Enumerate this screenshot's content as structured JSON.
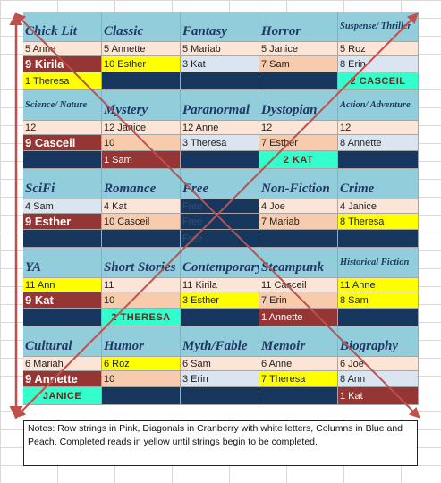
{
  "colors": {
    "header": "#92cddc",
    "peach": "#fce4d6",
    "blue": "#dae5f1",
    "yellow": "#ffff00",
    "orange": "#f8cbad",
    "cranberry": "#963634",
    "navy": "#17375e",
    "teal": "#33ffcc",
    "line": "#c0504d"
  },
  "sections": [
    {
      "headers": [
        "Chick Lit",
        "Classic",
        "Fantasy",
        "Horror",
        "Suspense/ Thriller"
      ],
      "header_small": [
        false,
        false,
        false,
        false,
        true
      ],
      "rows": [
        [
          {
            "t": "5 Anne",
            "c": "peach"
          },
          {
            "t": "5 Annette",
            "c": "peach"
          },
          {
            "t": "5 Mariab",
            "c": "peach"
          },
          {
            "t": "5 Janice",
            "c": "peach"
          },
          {
            "t": "5 Roz",
            "c": "peach"
          }
        ],
        [
          {
            "t": "9 Kirila",
            "c": "cranberry"
          },
          {
            "t": "10 Esther",
            "c": "yellow"
          },
          {
            "t": "3 Kat",
            "c": "blue"
          },
          {
            "t": "7 Sam",
            "c": "orange"
          },
          {
            "t": "8 Erin",
            "c": "blue"
          }
        ],
        [
          {
            "t": "1 Theresa",
            "c": "yellow"
          },
          {
            "t": "",
            "c": "navy"
          },
          {
            "t": "",
            "c": "navy"
          },
          {
            "t": "",
            "c": "navy"
          },
          {
            "t": "2 CASCEIL",
            "c": "teal"
          }
        ]
      ]
    },
    {
      "headers": [
        "Science/ Nature",
        "Mystery",
        "Paranormal",
        "Dystopian",
        "Action/ Adventure"
      ],
      "header_small": [
        true,
        false,
        false,
        false,
        true
      ],
      "rows": [
        [
          {
            "t": "12",
            "c": "peach"
          },
          {
            "t": "12 Janice",
            "c": "peach"
          },
          {
            "t": "12 Anne",
            "c": "peach"
          },
          {
            "t": "12",
            "c": "peach"
          },
          {
            "t": "12",
            "c": "peach"
          }
        ],
        [
          {
            "t": "9 Casceil",
            "c": "cranberry"
          },
          {
            "t": "10",
            "c": "orange"
          },
          {
            "t": "3 Theresa",
            "c": "blue"
          },
          {
            "t": "7 Esther",
            "c": "orange"
          },
          {
            "t": "8 Annette",
            "c": "blue"
          }
        ],
        [
          {
            "t": "",
            "c": "navy"
          },
          {
            "t": "1 Sam",
            "c": "cranberry"
          },
          {
            "t": "",
            "c": "navy"
          },
          {
            "t": "2 KAT",
            "c": "teal"
          },
          {
            "t": "",
            "c": "navy"
          }
        ]
      ]
    },
    {
      "headers": [
        "SciFi",
        "Romance",
        "Free",
        "Non-Fiction",
        "Crime"
      ],
      "header_small": [
        false,
        false,
        false,
        false,
        false
      ],
      "rows": [
        [
          {
            "t": "4 Sam",
            "c": "blue"
          },
          {
            "t": "4 Kat",
            "c": "peach"
          },
          {
            "t": "Free",
            "c": "navy"
          },
          {
            "t": "4 Joe",
            "c": "peach"
          },
          {
            "t": "4 Janice",
            "c": "peach"
          }
        ],
        [
          {
            "t": "9 Esther",
            "c": "cranberry"
          },
          {
            "t": "10 Casceil",
            "c": "orange"
          },
          {
            "t": "Free",
            "c": "navy"
          },
          {
            "t": "7 Mariab",
            "c": "orange"
          },
          {
            "t": "8 Theresa",
            "c": "yellow"
          }
        ],
        [
          {
            "t": "",
            "c": "navy"
          },
          {
            "t": "",
            "c": "navy"
          },
          {
            "t": "Free",
            "c": "navy"
          },
          {
            "t": "",
            "c": "navy"
          },
          {
            "t": "",
            "c": "navy"
          }
        ]
      ]
    },
    {
      "headers": [
        "YA",
        "Short Stories",
        "Contemporary",
        "Steampunk",
        "Historical Fiction"
      ],
      "header_small": [
        false,
        false,
        false,
        false,
        true
      ],
      "rows": [
        [
          {
            "t": "11 Ann",
            "c": "yellow"
          },
          {
            "t": "11",
            "c": "peach"
          },
          {
            "t": "11 Kirila",
            "c": "peach"
          },
          {
            "t": "11 Casceil",
            "c": "peach"
          },
          {
            "t": "11 Anne",
            "c": "yellow"
          }
        ],
        [
          {
            "t": "9 Kat",
            "c": "cranberry"
          },
          {
            "t": "10",
            "c": "orange"
          },
          {
            "t": "3 Esther",
            "c": "yellow"
          },
          {
            "t": "7 Erin",
            "c": "orange"
          },
          {
            "t": "8 Sam",
            "c": "yellow"
          }
        ],
        [
          {
            "t": "",
            "c": "navy"
          },
          {
            "t": "2 THERESA",
            "c": "teal"
          },
          {
            "t": "",
            "c": "navy"
          },
          {
            "t": "1 Annette",
            "c": "cranberry"
          },
          {
            "t": "",
            "c": "navy"
          }
        ]
      ]
    },
    {
      "headers": [
        "Cultural",
        "Humor",
        "Myth/Fable",
        "Memoir",
        "Biography"
      ],
      "header_small": [
        false,
        false,
        false,
        false,
        false
      ],
      "rows": [
        [
          {
            "t": "6 Mariah",
            "c": "peach"
          },
          {
            "t": "6 Roz",
            "c": "yellow"
          },
          {
            "t": "6 Sam",
            "c": "peach"
          },
          {
            "t": "6 Anne",
            "c": "peach"
          },
          {
            "t": "6 Joe",
            "c": "peach"
          }
        ],
        [
          {
            "t": "9 Annette",
            "c": "cranberry"
          },
          {
            "t": "10",
            "c": "orange"
          },
          {
            "t": "3 Erin",
            "c": "blue"
          },
          {
            "t": "7 Theresa",
            "c": "yellow"
          },
          {
            "t": "8 Ann",
            "c": "blue"
          }
        ],
        [
          {
            "t": "JANICE",
            "c": "teal"
          },
          {
            "t": "",
            "c": "navy"
          },
          {
            "t": "",
            "c": "navy"
          },
          {
            "t": "",
            "c": "navy"
          },
          {
            "t": "1 Kat",
            "c": "cranberry"
          }
        ]
      ]
    }
  ],
  "notes": "Notes:  Row strings in Pink, Diagonals in Cranberry with white letters, Columns in Blue and Peach.  Completed reads in yellow until strings begin to be completed."
}
